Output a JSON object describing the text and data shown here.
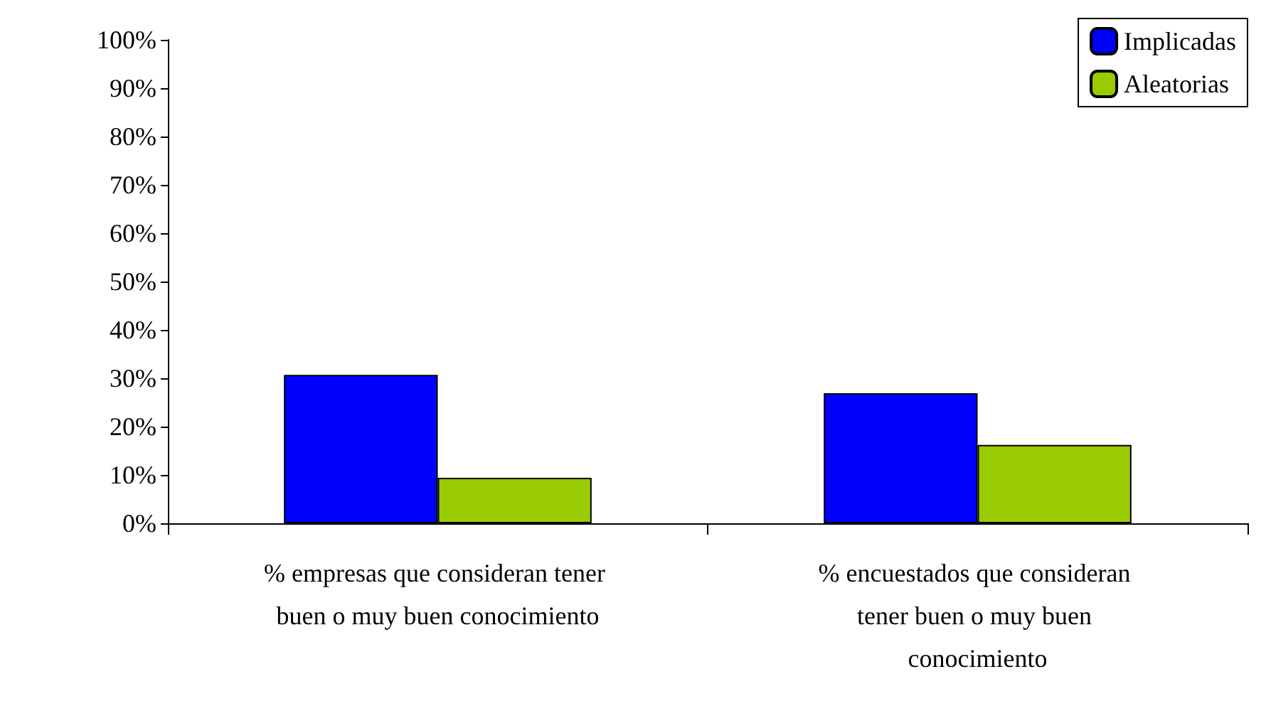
{
  "chart_data": {
    "type": "bar",
    "categories": [
      "% empresas que consideran tener buen o muy buen conocimiento",
      "% encuestados que consideran tener buen o muy buen conocimiento"
    ],
    "series": [
      {
        "name": "Implicadas",
        "color": "#0000ff",
        "values": [
          30.7,
          26.9
        ]
      },
      {
        "name": "Aleatorias",
        "color": "#99cc00",
        "values": [
          9.4,
          16.2
        ]
      }
    ],
    "ylim": [
      0,
      100
    ],
    "yticks": [
      {
        "value": 0,
        "label": "0%"
      },
      {
        "value": 10,
        "label": "10%"
      },
      {
        "value": 20,
        "label": "20%"
      },
      {
        "value": 30,
        "label": "30%"
      },
      {
        "value": 40,
        "label": "40%"
      },
      {
        "value": 50,
        "label": "50%"
      },
      {
        "value": 60,
        "label": "60%"
      },
      {
        "value": 70,
        "label": "70%"
      },
      {
        "value": 80,
        "label": "80%"
      },
      {
        "value": 90,
        "label": "90%"
      },
      {
        "value": 100,
        "label": "100%"
      }
    ],
    "grid": false,
    "legend": "top right"
  }
}
